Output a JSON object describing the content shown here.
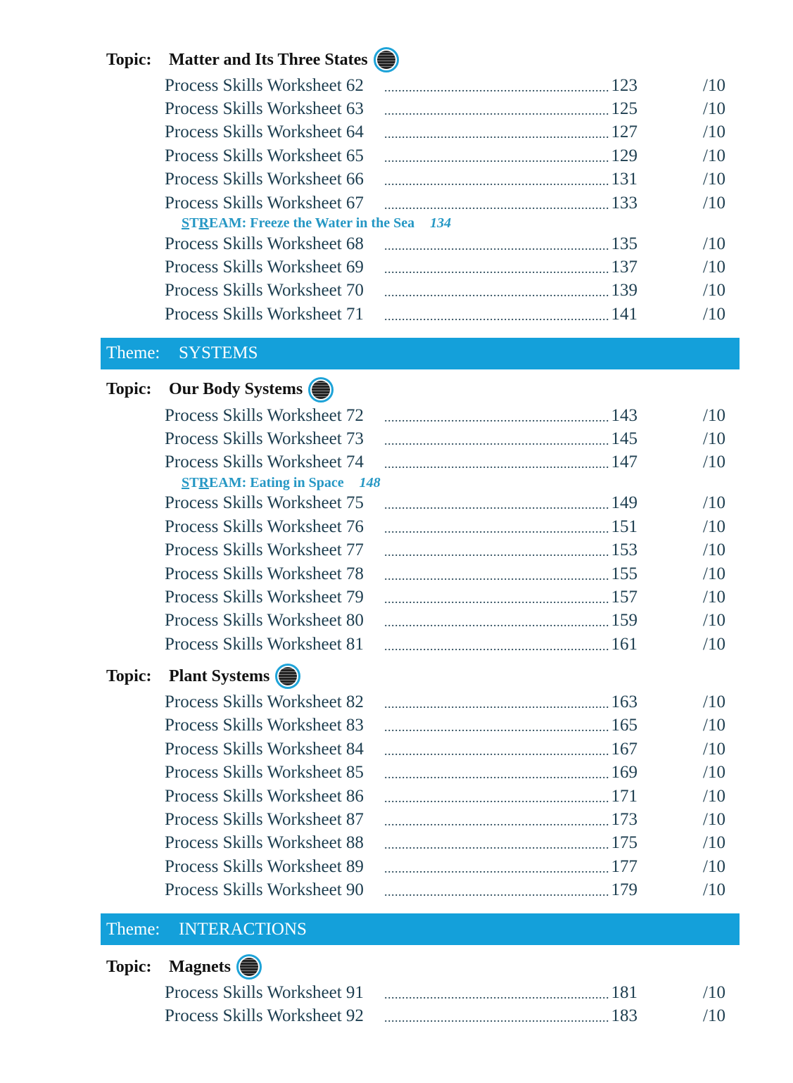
{
  "score_label": "/10",
  "topic_label": "Topic:",
  "theme_label": "Theme:",
  "colors": {
    "theme_bar": "#14a0da",
    "stream_text": "#2597c4",
    "worksheet_text": "#1c3d4f",
    "topic_icon_ring": "#1ea3d8"
  },
  "sections": [
    {
      "type": "topic",
      "title": "Matter and Its Three States",
      "icon": "worksheet-badge-icon"
    },
    {
      "type": "item",
      "name": "Process Skills Worksheet 62",
      "page": "123"
    },
    {
      "type": "item",
      "name": "Process Skills Worksheet 63",
      "page": "125"
    },
    {
      "type": "item",
      "name": "Process Skills Worksheet 64",
      "page": "127"
    },
    {
      "type": "item",
      "name": "Process Skills Worksheet 65",
      "page": "129"
    },
    {
      "type": "item",
      "name": "Process Skills Worksheet 66",
      "page": "131"
    },
    {
      "type": "item",
      "name": "Process Skills Worksheet 67",
      "page": "133"
    },
    {
      "type": "stream",
      "s": "S",
      "t": "T",
      "r": "R",
      "rest": "EAM: Freeze the Water in the Sea",
      "page": "134"
    },
    {
      "type": "item",
      "name": "Process Skills Worksheet 68",
      "page": "135"
    },
    {
      "type": "item",
      "name": "Process Skills Worksheet 69",
      "page": "137"
    },
    {
      "type": "item",
      "name": "Process Skills Worksheet 70",
      "page": "139"
    },
    {
      "type": "item",
      "name": "Process Skills Worksheet 71",
      "page": "141"
    },
    {
      "type": "theme",
      "title": "SYSTEMS"
    },
    {
      "type": "topic",
      "title": "Our Body Systems",
      "icon": "worksheet-badge-icon"
    },
    {
      "type": "item",
      "name": "Process Skills Worksheet 72",
      "page": "143"
    },
    {
      "type": "item",
      "name": "Process Skills Worksheet 73",
      "page": "145"
    },
    {
      "type": "item",
      "name": "Process Skills Worksheet 74",
      "page": "147"
    },
    {
      "type": "stream",
      "s": "S",
      "t": "T",
      "r": "R",
      "rest": "EAM: Eating in Space",
      "page": "148"
    },
    {
      "type": "item",
      "name": "Process Skills Worksheet 75",
      "page": "149"
    },
    {
      "type": "item",
      "name": "Process Skills Worksheet 76",
      "page": "151"
    },
    {
      "type": "item",
      "name": "Process Skills Worksheet 77",
      "page": "153"
    },
    {
      "type": "item",
      "name": "Process Skills Worksheet 78",
      "page": "155"
    },
    {
      "type": "item",
      "name": "Process Skills Worksheet 79",
      "page": "157"
    },
    {
      "type": "item",
      "name": "Process Skills Worksheet 80",
      "page": "159"
    },
    {
      "type": "item",
      "name": "Process Skills Worksheet 81",
      "page": "161"
    },
    {
      "type": "topic",
      "title": "Plant Systems",
      "icon": "worksheet-badge-icon"
    },
    {
      "type": "item",
      "name": "Process Skills Worksheet 82",
      "page": "163"
    },
    {
      "type": "item",
      "name": "Process Skills Worksheet 83",
      "page": "165"
    },
    {
      "type": "item",
      "name": "Process Skills Worksheet 84",
      "page": "167"
    },
    {
      "type": "item",
      "name": "Process Skills Worksheet 85",
      "page": "169"
    },
    {
      "type": "item",
      "name": "Process Skills Worksheet 86",
      "page": "171"
    },
    {
      "type": "item",
      "name": "Process Skills Worksheet 87",
      "page": "173"
    },
    {
      "type": "item",
      "name": "Process Skills Worksheet 88",
      "page": "175"
    },
    {
      "type": "item",
      "name": "Process Skills Worksheet 89",
      "page": "177"
    },
    {
      "type": "item",
      "name": "Process Skills Worksheet 90",
      "page": "179"
    },
    {
      "type": "theme",
      "title": "INTERACTIONS"
    },
    {
      "type": "topic",
      "title": "Magnets",
      "icon": "worksheet-badge-icon"
    },
    {
      "type": "item",
      "name": "Process Skills Worksheet 91",
      "page": "181"
    },
    {
      "type": "item",
      "name": "Process Skills Worksheet 92",
      "page": "183"
    }
  ]
}
